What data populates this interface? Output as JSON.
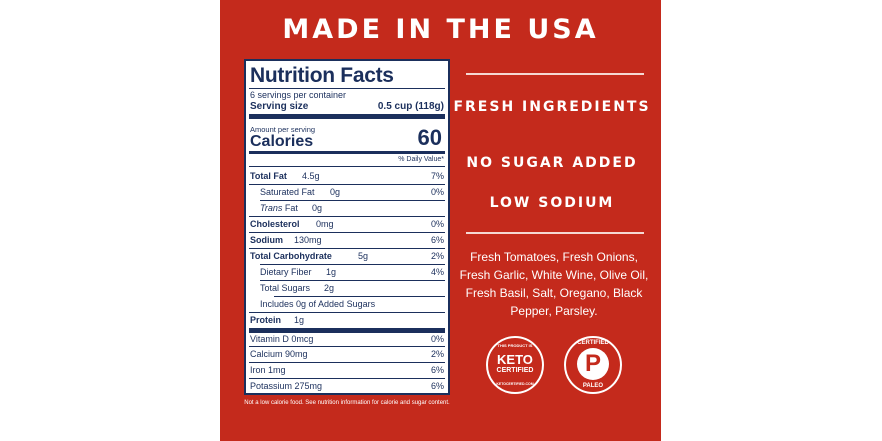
{
  "title": "MADE IN THE USA",
  "nutrition": {
    "heading": "Nutrition Facts",
    "servings": "6 servings per container",
    "serving_size_label": "Serving size",
    "serving_size_value": "0.5 cup (118g)",
    "amount_per_serving": "Amount per serving",
    "calories_label": "Calories",
    "calories_value": "60",
    "daily_value_header": "% Daily Value*",
    "rows": [
      {
        "label": "Total Fat",
        "amount": "4.5g",
        "dv": "7%"
      },
      {
        "label": "Saturated Fat",
        "amount": "0g",
        "dv": "0%"
      },
      {
        "label": "Trans",
        "label_suffix": "Fat",
        "amount": "0g",
        "dv": ""
      },
      {
        "label": "Cholesterol",
        "amount": "0mg",
        "dv": "0%"
      },
      {
        "label": "Sodium",
        "amount": "130mg",
        "dv": "6%"
      },
      {
        "label": "Total Carbohydrate",
        "amount": "5g",
        "dv": "2%"
      },
      {
        "label": "Dietary Fiber",
        "amount": "1g",
        "dv": "4%"
      },
      {
        "label": "Total Sugars",
        "amount": "2g",
        "dv": ""
      },
      {
        "label": "Includes 0g of Added Sugars",
        "amount": "",
        "dv": ""
      },
      {
        "label": "Protein",
        "amount": "1g",
        "dv": ""
      },
      {
        "label": "Vitamin D 0mcg",
        "amount": "",
        "dv": "0%"
      },
      {
        "label": "Calcium 90mg",
        "amount": "",
        "dv": "2%"
      },
      {
        "label": "Iron 1mg",
        "amount": "",
        "dv": "6%"
      },
      {
        "label": "Potassium 275mg",
        "amount": "",
        "dv": "6%"
      }
    ],
    "footnote": "Not a low calorie food. See nutrition information for calorie and sugar content."
  },
  "features": [
    "FRESH INGREDIENTS",
    "NO SUGAR ADDED",
    "LOW SODIUM"
  ],
  "ingredients": "Fresh Tomatoes, Fresh Onions, Fresh Garlic, White Wine, Olive Oil, Fresh Basil, Salt, Oregano, Black Pepper, Parsley.",
  "badges": {
    "keto": {
      "top": "THIS PRODUCT IS",
      "line1": "KETO",
      "line2": "CERTIFIED",
      "bottom": "KETOCERTIFIED.COM"
    },
    "paleo": {
      "top": "CERTIFIED",
      "letter": "P",
      "bottom": "PALEO"
    }
  },
  "colors": {
    "background": "#c42a1c",
    "label_ink": "#1b2f5c",
    "text": "#ffffff"
  }
}
